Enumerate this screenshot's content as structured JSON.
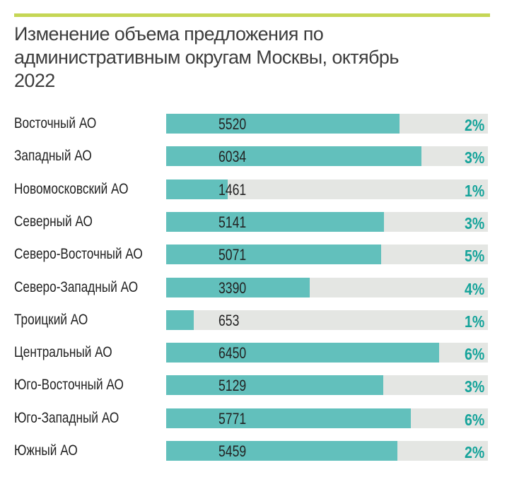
{
  "colors": {
    "accent_line": "#c5d655",
    "bar": "#62c0bc",
    "track": "#e4e6e3",
    "percent": "#14a39a"
  },
  "chart_data": {
    "type": "bar",
    "orientation": "horizontal",
    "title": "Изменение объема предложения по административным округам Москвы, октябрь 2022",
    "categories": [
      "Восточный АО",
      "Западный АО",
      "Новомосковский АО",
      "Северный АО",
      "Северо-Восточный АО",
      "Северо-Западный АО",
      "Троицкий АО",
      "Центральный АО",
      "Юго-Восточный АО",
      "Юго-Западный АО",
      "Южный АО"
    ],
    "values": [
      5520,
      6034,
      1461,
      5141,
      5071,
      3390,
      653,
      6450,
      5129,
      5771,
      5459
    ],
    "change_labels": [
      "2%",
      "3%",
      "1%",
      "3%",
      "5%",
      "4%",
      "1%",
      "6%",
      "3%",
      "6%",
      "2%"
    ],
    "grid": false
  }
}
